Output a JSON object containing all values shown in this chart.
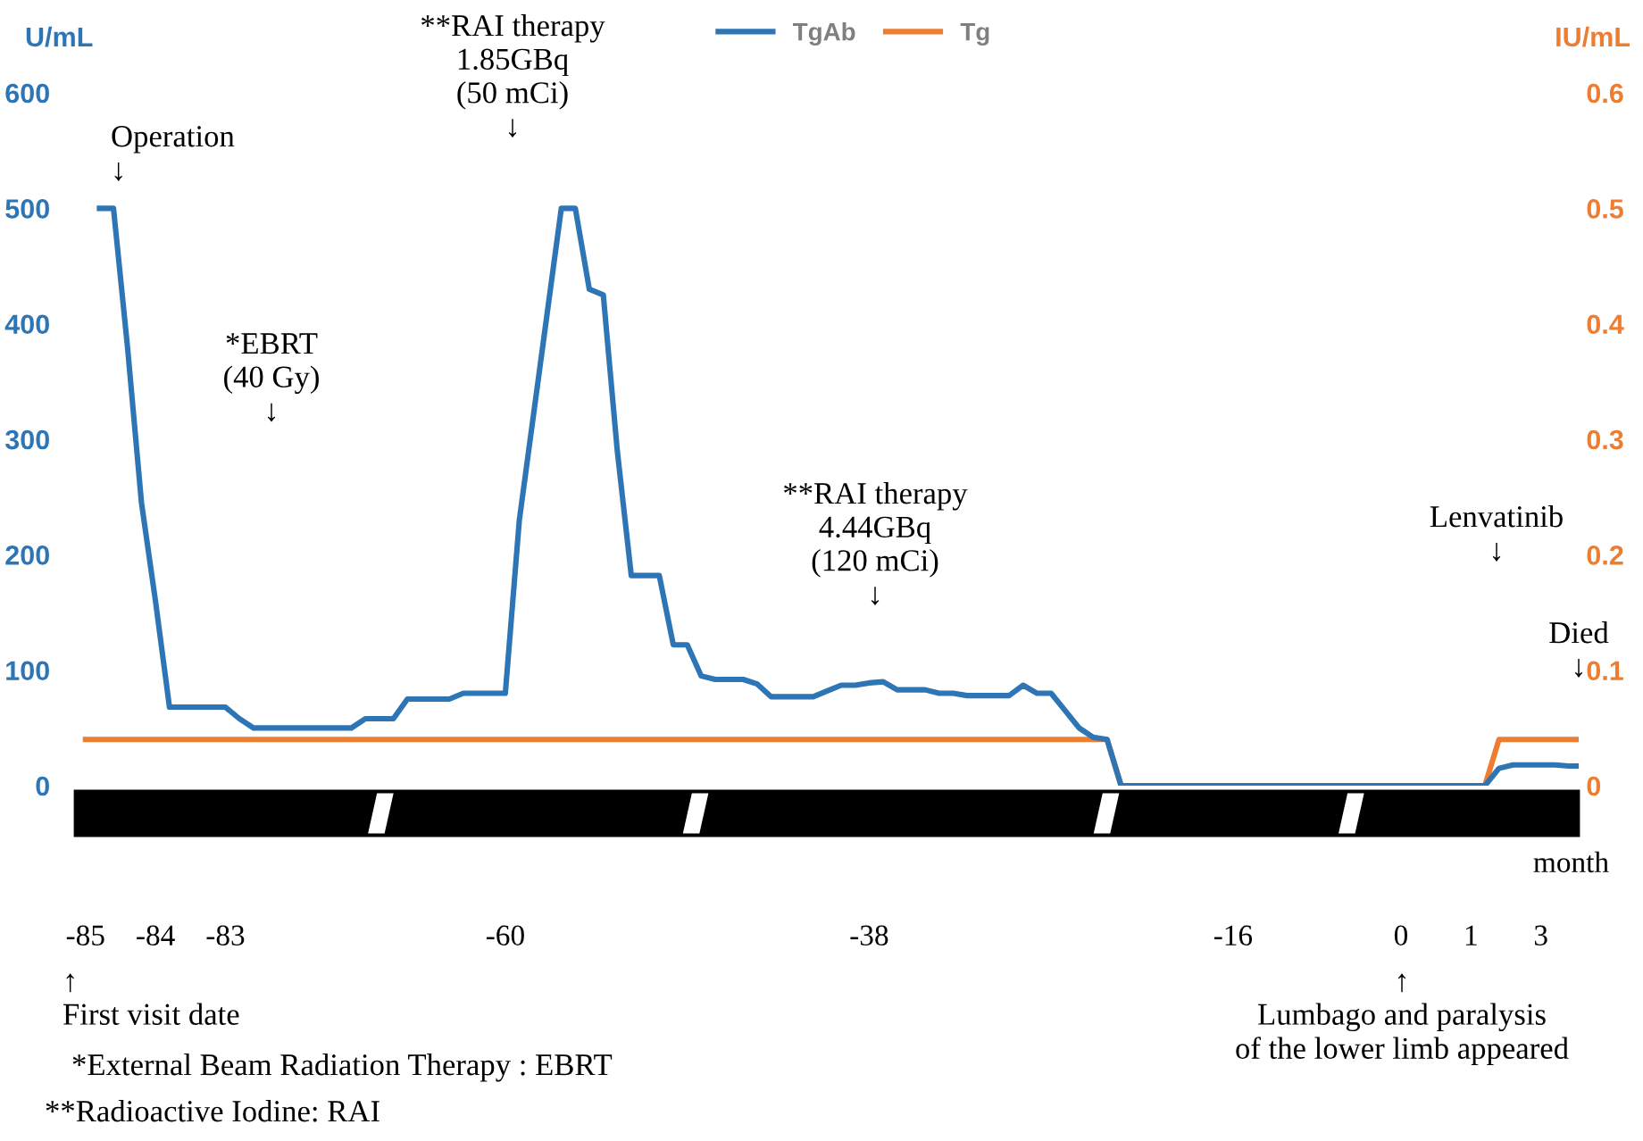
{
  "chart_data": {
    "type": "line",
    "ylabel": "U/mL",
    "y2label": "IU/mL",
    "xlabel": "month",
    "categories": [
      "-85",
      null,
      null,
      null,
      null,
      "-84",
      null,
      null,
      null,
      null,
      "-83",
      null,
      null,
      null,
      null,
      null,
      null,
      null,
      null,
      null,
      null,
      null,
      null,
      null,
      null,
      null,
      null,
      null,
      null,
      null,
      "-60",
      null,
      null,
      null,
      null,
      null,
      null,
      null,
      null,
      null,
      null,
      null,
      null,
      null,
      null,
      null,
      null,
      null,
      null,
      null,
      null,
      null,
      null,
      null,
      null,
      null,
      "-38",
      null,
      null,
      null,
      null,
      null,
      null,
      null,
      null,
      null,
      null,
      null,
      null,
      null,
      null,
      null,
      null,
      null,
      null,
      null,
      null,
      null,
      null,
      null,
      null,
      null,
      "-16",
      null,
      null,
      null,
      null,
      null,
      null,
      null,
      null,
      null,
      null,
      null,
      "0",
      null,
      null,
      null,
      null,
      "1",
      null,
      null,
      null,
      null,
      "3",
      null,
      null,
      null
    ],
    "series": [
      {
        "name": "TgAb",
        "color": "#2e75b6",
        "values": [
          null,
          500,
          500,
          380,
          245,
          160,
          68,
          68,
          68,
          68,
          68,
          58,
          50,
          50,
          50,
          50,
          50,
          50,
          50,
          50,
          58,
          58,
          58,
          75,
          75,
          75,
          75,
          80,
          80,
          80,
          80,
          230,
          320,
          410,
          500,
          500,
          430,
          425,
          290,
          182,
          182,
          182,
          122,
          122,
          95,
          92,
          92,
          92,
          88,
          77,
          77,
          77,
          77,
          82,
          87,
          87,
          89,
          90,
          83,
          83,
          83,
          80,
          80,
          78,
          78,
          78,
          78,
          87,
          80,
          80,
          65,
          50,
          42,
          40,
          0,
          0,
          0,
          0,
          0,
          0,
          0,
          0,
          0,
          0,
          0,
          0,
          0,
          0,
          0,
          0,
          0,
          0,
          0,
          0,
          0,
          0,
          0,
          0,
          0,
          0,
          0,
          15,
          18,
          18,
          18,
          18,
          17,
          17
        ]
      },
      {
        "name": "Tg",
        "color": "#ed7d31",
        "axis": "y2",
        "values": [
          0.04,
          0.04,
          0.04,
          0.04,
          0.04,
          0.04,
          0.04,
          0.04,
          0.04,
          0.04,
          0.04,
          0.04,
          0.04,
          0.04,
          0.04,
          0.04,
          0.04,
          0.04,
          0.04,
          0.04,
          0.04,
          0.04,
          0.04,
          0.04,
          0.04,
          0.04,
          0.04,
          0.04,
          0.04,
          0.04,
          0.04,
          0.04,
          0.04,
          0.04,
          0.04,
          0.04,
          0.04,
          0.04,
          0.04,
          0.04,
          0.04,
          0.04,
          0.04,
          0.04,
          0.04,
          0.04,
          0.04,
          0.04,
          0.04,
          0.04,
          0.04,
          0.04,
          0.04,
          0.04,
          0.04,
          0.04,
          0.04,
          0.04,
          0.04,
          0.04,
          0.04,
          0.04,
          0.04,
          0.04,
          0.04,
          0.04,
          0.04,
          0.04,
          0.04,
          0.04,
          0.04,
          0.04,
          0.04,
          0.04,
          0,
          0,
          0,
          0,
          0,
          0,
          0,
          0,
          0,
          0,
          0,
          0,
          0,
          0,
          0,
          0,
          0,
          0,
          0,
          0,
          0,
          0,
          0,
          0,
          0,
          0,
          0,
          0.04,
          0.04,
          0.04,
          0.04,
          0.04,
          0.04,
          0.04
        ]
      }
    ],
    "ylim": [
      0,
      600
    ],
    "yticks": [
      0,
      100,
      200,
      300,
      400,
      500,
      600
    ],
    "y2lim": [
      0,
      0.6
    ],
    "y2ticks": [
      0,
      0.1,
      0.2,
      0.3,
      0.4,
      0.5,
      0.6
    ],
    "grid": false,
    "legend": "top",
    "marker": "none",
    "line_style": "solid",
    "annotations": [
      "Operation\n↓",
      "**RAI therapy\n1.85GBq\n(50 mCi)\n↓",
      "*EBRT\n(40 Gy)\n↓",
      "**RAI therapy\n4.44GBq\n(120 mCi)\n↓",
      "Lenvatinib\n↓",
      "Died\n↓",
      "↑\nFirst visit date",
      "↑\nLumbago and paralysis\nof the lower limb appeared",
      "*External Beam Radiation Therapy : EBRT",
      "**Radioactive Iodine: RAI"
    ]
  }
}
